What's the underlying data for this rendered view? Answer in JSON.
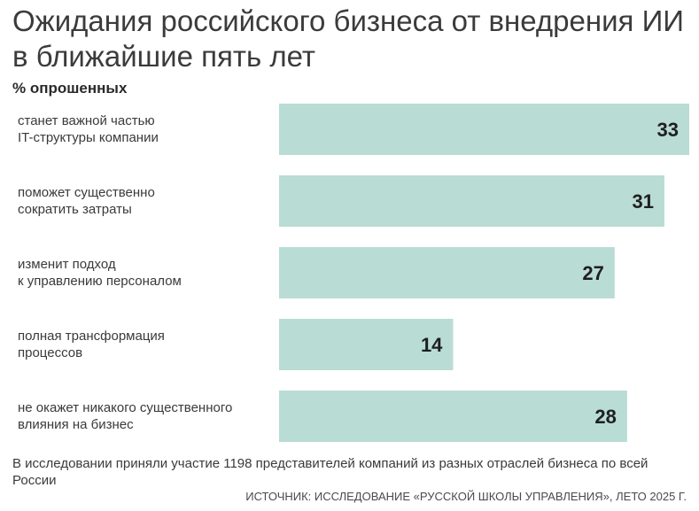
{
  "chart_data": {
    "type": "bar",
    "orientation": "horizontal",
    "title": "Ожидания российского бизнеса от внедрения ИИ в ближайшие пять лет",
    "subtitle": "% опрошенных",
    "categories": [
      [
        "станет важной частью",
        "IT-структуры компании"
      ],
      [
        "поможет существенно",
        "сократить затраты"
      ],
      [
        "изменит подход",
        "к управлению персоналом"
      ],
      [
        "полная трансформация",
        "процессов"
      ],
      [
        "не окажет никакого существенного",
        "влияния на бизнес"
      ]
    ],
    "values": [
      33,
      31,
      27,
      14,
      28
    ],
    "xlim": [
      0,
      33
    ],
    "xlabel": "",
    "ylabel": "",
    "grid": false,
    "bar_color": "#b9dcd4",
    "label_color": "#1f1f1f"
  },
  "footer": {
    "note": "В исследовании приняли участие 1198 представителей компаний из разных отраслей бизнеса по всей России",
    "source": "ИСТОЧНИК: ИССЛЕДОВАНИЕ «РУССКОЙ ШКОЛЫ УПРАВЛЕНИЯ», ЛЕТО 2025 Г."
  }
}
